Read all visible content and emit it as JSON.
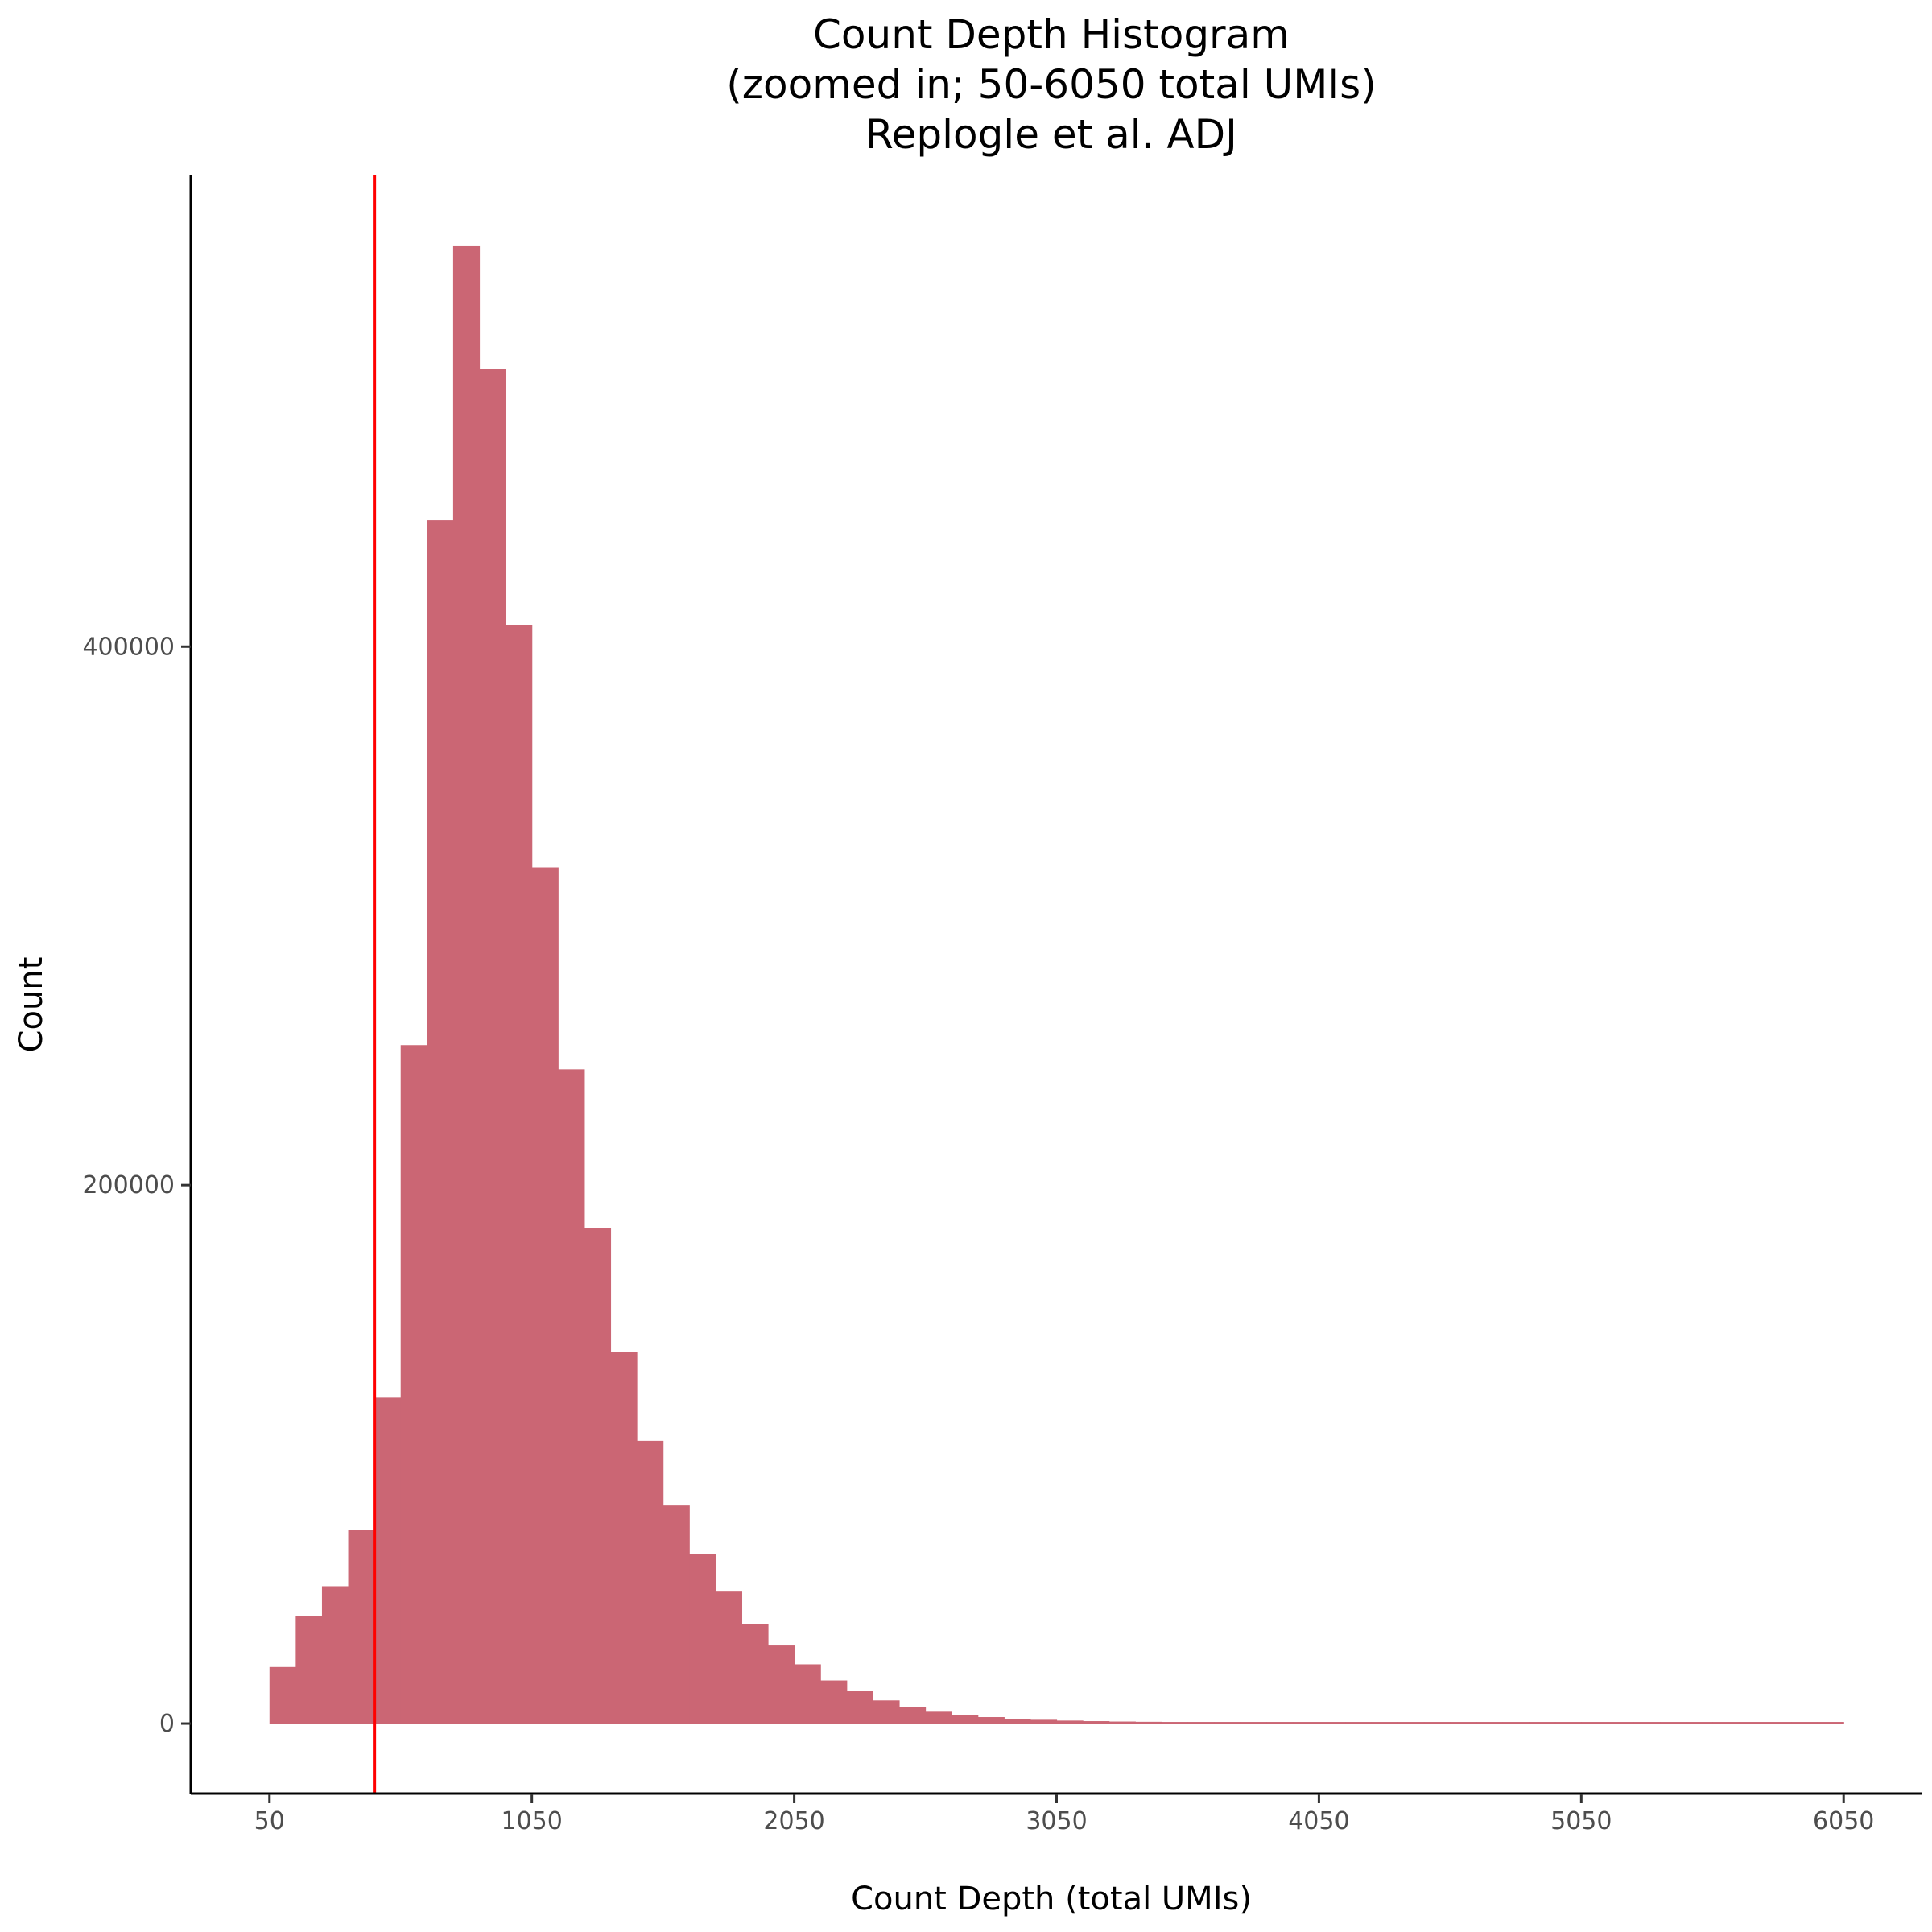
{
  "chart_data": {
    "type": "histogram",
    "title_lines": [
      "Count Depth Histogram",
      "(zoomed in; 50-6050 total UMIs)",
      "Replogle et al. ADJ"
    ],
    "xlabel": "Count Depth (total UMIs)",
    "ylabel": "Count",
    "x_ticks": [
      50,
      1050,
      2050,
      3050,
      4050,
      5050,
      6050
    ],
    "x_tick_labels": [
      "50",
      "1050",
      "2050",
      "3050",
      "4050",
      "5050",
      "6050"
    ],
    "y_ticks": [
      0,
      200000,
      400000
    ],
    "y_tick_labels": [
      "0",
      "200000",
      "400000"
    ],
    "xlim": [
      -250,
      6350
    ],
    "ylim": [
      -26000,
      575000
    ],
    "bin_width": 100,
    "bin_start": 50,
    "values": [
      21000,
      40000,
      51000,
      72000,
      121000,
      252000,
      447000,
      549000,
      503000,
      408000,
      318000,
      243000,
      184000,
      138000,
      105000,
      81000,
      63000,
      49000,
      37000,
      29000,
      22000,
      16000,
      12000,
      8600,
      6200,
      4400,
      3200,
      2400,
      1800,
      1400,
      1100,
      900,
      750,
      650,
      560,
      500,
      450,
      420,
      400,
      380,
      370,
      360,
      350,
      340,
      330,
      320,
      310,
      300,
      290,
      280,
      270,
      260,
      250,
      240,
      230,
      220,
      210,
      200,
      200,
      200
    ],
    "bar_color": "#cb6674",
    "vline": {
      "x": 450,
      "color": "#ff0000"
    },
    "grid": false
  }
}
